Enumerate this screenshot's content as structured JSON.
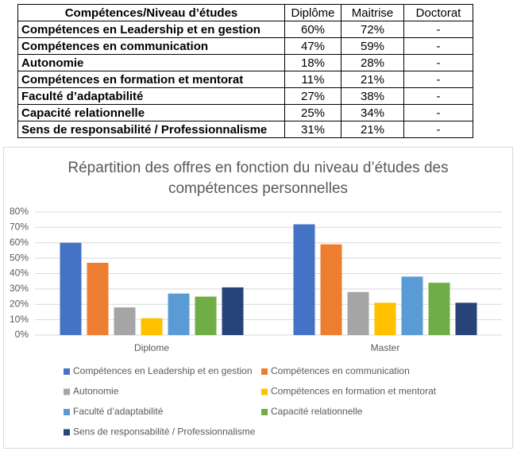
{
  "table": {
    "header": [
      "Compétences/Niveau d’études",
      "Diplôme",
      "Maitrise",
      "Doctorat"
    ],
    "rows": [
      [
        "Compétences en Leadership et en gestion",
        "60%",
        "72%",
        "-"
      ],
      [
        "Compétences en communication",
        "47%",
        "59%",
        "-"
      ],
      [
        "Autonomie",
        "18%",
        "28%",
        "-"
      ],
      [
        "Compétences en formation et mentorat",
        "11%",
        "21%",
        "-"
      ],
      [
        "Faculté d’adaptabilité",
        "27%",
        "38%",
        "-"
      ],
      [
        "Capacité relationnelle",
        "25%",
        "34%",
        "-"
      ],
      [
        "Sens de responsabilité / Professionnalisme",
        "31%",
        "21%",
        "-"
      ]
    ]
  },
  "chart_data": {
    "type": "bar",
    "title": "Répartition des offres en fonction du niveau d’études des compétences personnelles",
    "categories": [
      "Diplome",
      "Master"
    ],
    "series": [
      {
        "name": "Compétences en Leadership et en gestion",
        "color": "#4472c4",
        "values": [
          60,
          72
        ]
      },
      {
        "name": "Compétences en communication",
        "color": "#ed7d31",
        "values": [
          47,
          59
        ]
      },
      {
        "name": "Autonomie",
        "color": "#a5a5a5",
        "values": [
          18,
          28
        ]
      },
      {
        "name": "Compétences en formation et mentorat",
        "color": "#ffc000",
        "values": [
          11,
          21
        ]
      },
      {
        "name": "Faculté d’adaptabilité",
        "color": "#5b9bd5",
        "values": [
          27,
          38
        ]
      },
      {
        "name": "Capacité relationnelle",
        "color": "#70ad47",
        "values": [
          25,
          34
        ]
      },
      {
        "name": "Sens de responsabilité / Professionnalisme",
        "color": "#264478",
        "values": [
          31,
          21
        ]
      }
    ],
    "ylim": [
      0,
      80
    ],
    "yticks": [
      {
        "value": 0,
        "label": "0%"
      },
      {
        "value": 10,
        "label": "10%"
      },
      {
        "value": 20,
        "label": "20%"
      },
      {
        "value": 30,
        "label": "30%"
      },
      {
        "value": 40,
        "label": "40%"
      },
      {
        "value": 50,
        "label": "50%"
      },
      {
        "value": 60,
        "label": "60%"
      },
      {
        "value": 70,
        "label": "70%"
      },
      {
        "value": 80,
        "label": "80%"
      }
    ],
    "grid": true,
    "legend": "bottom"
  }
}
